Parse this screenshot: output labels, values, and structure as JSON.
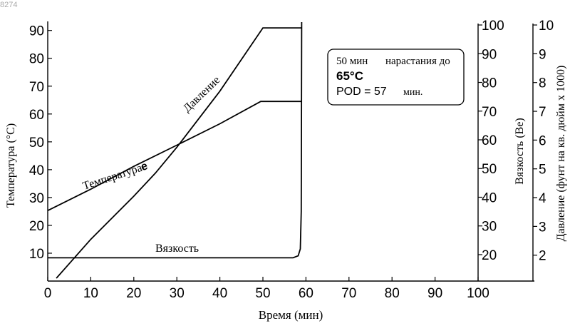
{
  "image_label": "8274",
  "chart_data": {
    "type": "line",
    "xlabel": "Время (мин)",
    "x_axis": {
      "min": 0,
      "max": 100,
      "ticks": [
        0,
        10,
        20,
        30,
        40,
        50,
        60,
        70,
        80,
        90,
        100
      ]
    },
    "y_axes": [
      {
        "id": "temperature",
        "label": "Температура (°C)",
        "min": 0,
        "max": 93,
        "ticks": [
          10,
          20,
          30,
          40,
          50,
          60,
          70,
          80,
          90
        ]
      },
      {
        "id": "viscosity",
        "label": "Вязкость (Be)",
        "min": 10.8,
        "max": 101,
        "ticks": [
          20,
          30,
          40,
          50,
          60,
          70,
          80,
          90,
          100
        ]
      },
      {
        "id": "pressure",
        "label": "Давление (фунт на кв. дюйм x 1000)",
        "min": 1.1,
        "max": 10.1,
        "ticks": [
          2,
          3,
          4,
          5,
          6,
          7,
          8,
          9,
          10
        ]
      }
    ],
    "series": [
      {
        "name": "Температура",
        "axis": "temperature",
        "points": [
          [
            0,
            25.3
          ],
          [
            10,
            33
          ],
          [
            20,
            41.2
          ],
          [
            30,
            48.8
          ],
          [
            40,
            56.5
          ],
          [
            49.5,
            64.5
          ],
          [
            59,
            64.5
          ]
        ]
      },
      {
        "name": "Давление",
        "axis": "pressure",
        "points": [
          [
            2,
            1.2
          ],
          [
            10,
            2.55
          ],
          [
            20,
            4.05
          ],
          [
            25,
            4.85
          ],
          [
            30,
            5.75
          ],
          [
            40,
            7.7
          ],
          [
            50,
            9.9
          ],
          [
            59,
            9.9
          ]
        ]
      },
      {
        "name": "Вязкость",
        "axis": "viscosity",
        "points": [
          [
            0,
            18.9
          ],
          [
            20,
            18.9
          ],
          [
            40,
            18.9
          ],
          [
            57,
            18.9
          ],
          [
            58.2,
            19.6
          ],
          [
            58.7,
            22
          ],
          [
            58.9,
            35
          ],
          [
            59,
            101
          ]
        ]
      }
    ],
    "annotations": {
      "temperature_label": "Температура",
      "temperature_suffix": "e",
      "pressure_label": "Давление",
      "viscosity_label": "Вязкость"
    },
    "note": {
      "line1_a": "50 мин",
      "line1_b": "нарастания до",
      "line2": "65°C",
      "line3_a": "POD = 57",
      "line3_b": "мин."
    }
  }
}
